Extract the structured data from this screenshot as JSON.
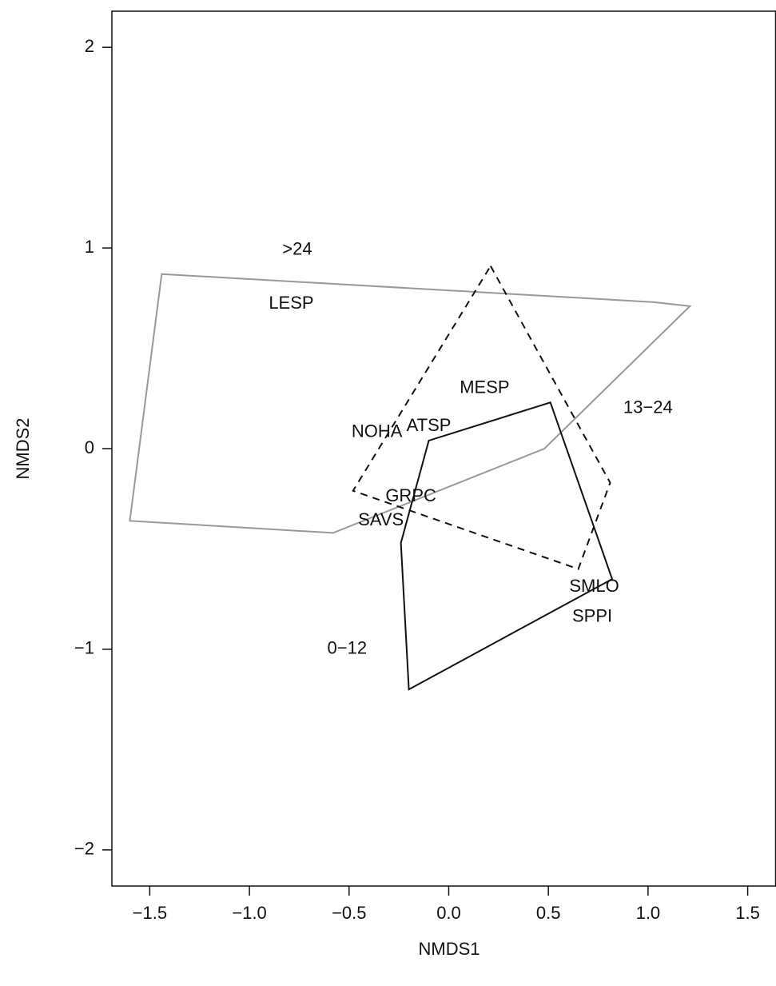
{
  "chart_data": {
    "type": "scatter",
    "x_label": "NMDS1",
    "y_label": "NMDS2",
    "xlim": [
      -1.69,
      1.64
    ],
    "ylim": [
      -2.18,
      2.18
    ],
    "xticks": [
      {
        "value": -1.5,
        "label": "−1.5"
      },
      {
        "value": -1.0,
        "label": "−1.0"
      },
      {
        "value": -0.5,
        "label": "−0.5"
      },
      {
        "value": 0,
        "label": "0.0"
      },
      0.5,
      {
        "value": 1.0,
        "label": "1.0"
      },
      1.5
    ],
    "yticks": [
      {
        "value": -2,
        "label": "−2"
      },
      {
        "value": -1,
        "label": "−1"
      },
      0,
      1,
      2
    ],
    "points": {
      "labels": [
        "LESP",
        "MESP",
        "NOHA",
        "ATSP",
        "GRPC",
        "SAVS",
        "SMLO",
        "SPPI"
      ],
      "x": [
        -0.79,
        0.18,
        -0.36,
        -0.1,
        -0.19,
        -0.34,
        0.73,
        0.72
      ],
      "y": [
        0.72,
        0.3,
        0.08,
        0.11,
        -0.24,
        -0.36,
        -0.69,
        -0.84
      ]
    },
    "series": [
      {
        "name": ">24",
        "color": "#999999",
        "dashed": false,
        "label_at": [
          -0.76,
          0.99
        ],
        "x": [
          -1.44,
          1.03,
          1.21,
          0.48,
          -0.58,
          -1.6
        ],
        "y": [
          0.87,
          0.73,
          0.71,
          0.0,
          -0.42,
          -0.36
        ]
      },
      {
        "name": "13−24",
        "color": "#111111",
        "dashed": true,
        "label_at": [
          1.0,
          0.2
        ],
        "x": [
          0.21,
          0.81,
          0.65,
          -0.48
        ],
        "y": [
          0.91,
          -0.17,
          -0.6,
          -0.21
        ]
      },
      {
        "name": "0−12",
        "color": "#111111",
        "dashed": false,
        "label_at": [
          -0.51,
          -1.0
        ],
        "x": [
          -0.1,
          0.51,
          0.82,
          -0.2,
          -0.24
        ],
        "y": [
          0.04,
          0.23,
          -0.65,
          -1.2,
          -0.47
        ]
      }
    ]
  }
}
